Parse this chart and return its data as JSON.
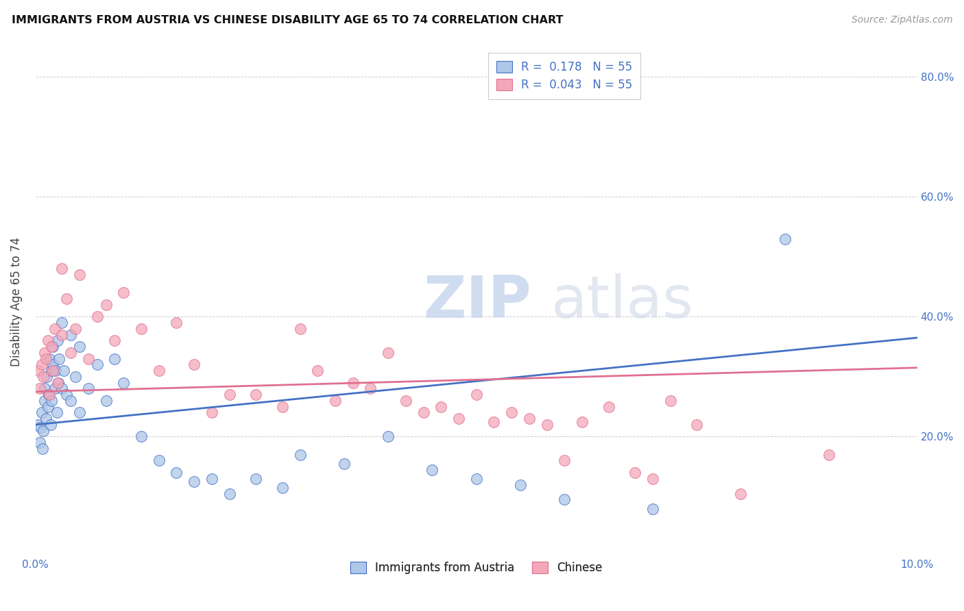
{
  "title": "IMMIGRANTS FROM AUSTRIA VS CHINESE DISABILITY AGE 65 TO 74 CORRELATION CHART",
  "source": "Source: ZipAtlas.com",
  "ylabel": "Disability Age 65 to 74",
  "xlim": [
    0.0,
    0.1
  ],
  "ylim": [
    0.0,
    0.85
  ],
  "ytick_vals": [
    0.2,
    0.4,
    0.6,
    0.8
  ],
  "ytick_labels": [
    "20.0%",
    "40.0%",
    "60.0%",
    "80.0%"
  ],
  "xtick_vals": [
    0.0,
    0.02,
    0.04,
    0.06,
    0.08,
    0.1
  ],
  "xtick_labels": [
    "0.0%",
    "",
    "",
    "",
    "",
    "10.0%"
  ],
  "legend1_label": "R =  0.178   N = 55",
  "legend2_label": "R =  0.043   N = 55",
  "legend_bottom_label1": "Immigrants from Austria",
  "legend_bottom_label2": "Chinese",
  "austria_color": "#aec6e8",
  "chinese_color": "#f4a7b9",
  "austria_line_color": "#4472c4",
  "chinese_line_color": "#e07090",
  "austria_x": [
    0.0003,
    0.0005,
    0.0006,
    0.0007,
    0.0008,
    0.0009,
    0.001,
    0.001,
    0.0012,
    0.0013,
    0.0014,
    0.0015,
    0.0016,
    0.0017,
    0.0018,
    0.0018,
    0.002,
    0.002,
    0.0022,
    0.0023,
    0.0024,
    0.0025,
    0.0026,
    0.0027,
    0.003,
    0.003,
    0.0032,
    0.0035,
    0.004,
    0.004,
    0.0045,
    0.005,
    0.005,
    0.006,
    0.007,
    0.008,
    0.009,
    0.01,
    0.012,
    0.014,
    0.016,
    0.018,
    0.02,
    0.022,
    0.025,
    0.028,
    0.03,
    0.035,
    0.04,
    0.045,
    0.05,
    0.055,
    0.06,
    0.07,
    0.085
  ],
  "austria_y": [
    0.22,
    0.19,
    0.215,
    0.24,
    0.18,
    0.21,
    0.26,
    0.28,
    0.23,
    0.3,
    0.25,
    0.27,
    0.33,
    0.22,
    0.31,
    0.26,
    0.35,
    0.32,
    0.28,
    0.31,
    0.24,
    0.36,
    0.29,
    0.33,
    0.39,
    0.28,
    0.31,
    0.27,
    0.37,
    0.26,
    0.3,
    0.35,
    0.24,
    0.28,
    0.32,
    0.26,
    0.33,
    0.29,
    0.2,
    0.16,
    0.14,
    0.125,
    0.13,
    0.105,
    0.13,
    0.115,
    0.17,
    0.155,
    0.2,
    0.145,
    0.13,
    0.12,
    0.095,
    0.08,
    0.53
  ],
  "chinese_x": [
    0.0003,
    0.0005,
    0.0007,
    0.0009,
    0.001,
    0.0012,
    0.0014,
    0.0016,
    0.0018,
    0.002,
    0.0022,
    0.0025,
    0.003,
    0.003,
    0.0035,
    0.004,
    0.0045,
    0.005,
    0.006,
    0.007,
    0.008,
    0.009,
    0.01,
    0.012,
    0.014,
    0.016,
    0.018,
    0.02,
    0.022,
    0.025,
    0.028,
    0.03,
    0.032,
    0.034,
    0.036,
    0.038,
    0.04,
    0.042,
    0.044,
    0.046,
    0.048,
    0.05,
    0.052,
    0.054,
    0.056,
    0.058,
    0.06,
    0.062,
    0.065,
    0.068,
    0.07,
    0.072,
    0.075,
    0.08,
    0.09
  ],
  "chinese_y": [
    0.31,
    0.28,
    0.32,
    0.3,
    0.34,
    0.33,
    0.36,
    0.27,
    0.35,
    0.31,
    0.38,
    0.29,
    0.48,
    0.37,
    0.43,
    0.34,
    0.38,
    0.47,
    0.33,
    0.4,
    0.42,
    0.36,
    0.44,
    0.38,
    0.31,
    0.39,
    0.32,
    0.24,
    0.27,
    0.27,
    0.25,
    0.38,
    0.31,
    0.26,
    0.29,
    0.28,
    0.34,
    0.26,
    0.24,
    0.25,
    0.23,
    0.27,
    0.225,
    0.24,
    0.23,
    0.22,
    0.16,
    0.225,
    0.25,
    0.14,
    0.13,
    0.26,
    0.22,
    0.105,
    0.17
  ]
}
